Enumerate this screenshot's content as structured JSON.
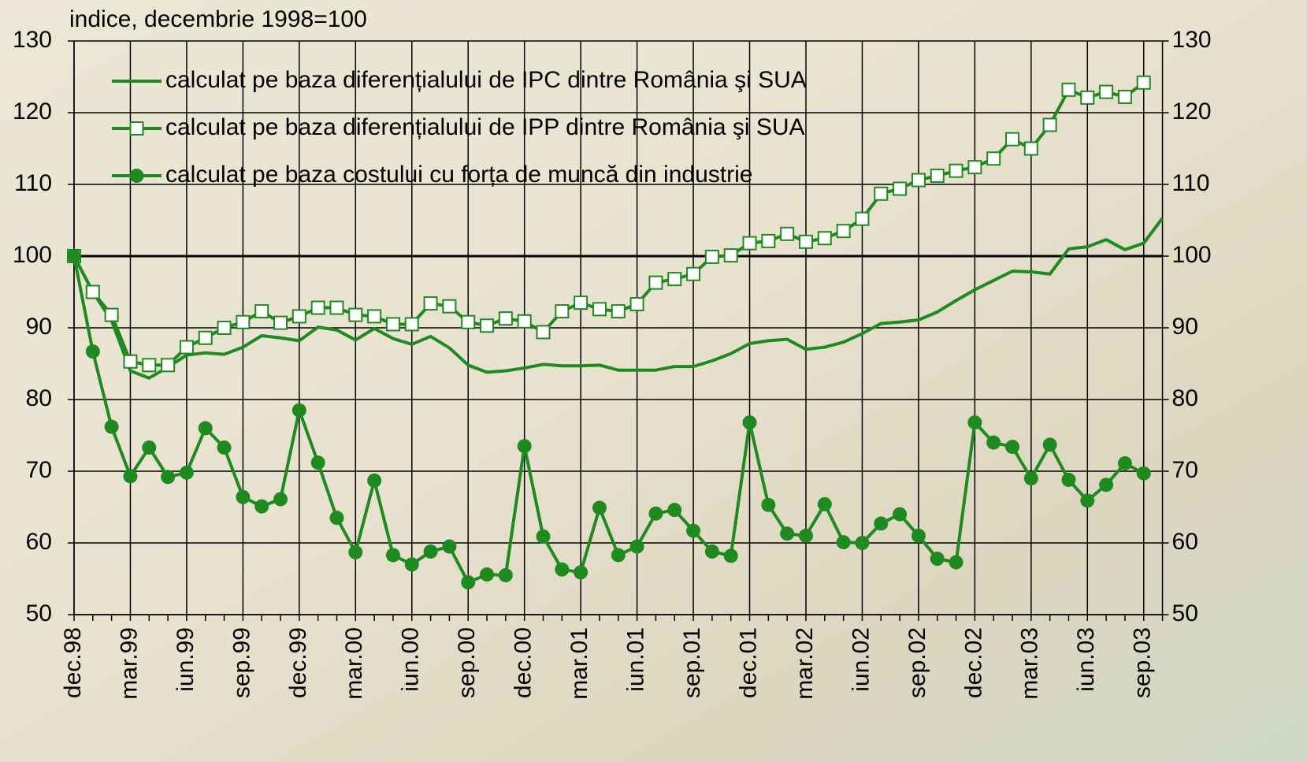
{
  "chart_data": {
    "type": "line",
    "y_axis_title": "indice, decembrie 1998=100",
    "categories": [
      "dec.98",
      null,
      null,
      "mar.99",
      null,
      null,
      "iun.99",
      null,
      null,
      "sep.99",
      null,
      null,
      "dec.99",
      null,
      null,
      "mar.00",
      null,
      null,
      "iun.00",
      null,
      null,
      "sep.00",
      null,
      null,
      "dec.00",
      null,
      null,
      "mar.01",
      null,
      null,
      "iun.01",
      null,
      null,
      "sep.01",
      null,
      null,
      "dec.01",
      null,
      null,
      "mar.02",
      null,
      null,
      "iun.02",
      null,
      null,
      "sep.02",
      null,
      null,
      "dec.02",
      null,
      null,
      "mar.03",
      null,
      null,
      "iun.03",
      null,
      null,
      "sep.03",
      null
    ],
    "ylim": [
      50,
      130
    ],
    "yticks": [
      50,
      60,
      70,
      80,
      90,
      100,
      110,
      120,
      130
    ],
    "y2lim": [
      50,
      130
    ],
    "y2ticks": [
      50,
      60,
      70,
      80,
      90,
      100,
      110,
      120,
      130
    ],
    "reference_line": 100,
    "grid": true,
    "legend": "upper left",
    "series": [
      {
        "name": "calculat pe baza diferențialului de IPC dintre România şi SUA",
        "color": "#1f8a1f",
        "marker": "none",
        "values": [
          100,
          95,
          91,
          84,
          83,
          84.5,
          86.2,
          86.5,
          86.3,
          87.3,
          88.9,
          88.6,
          88.2,
          90.1,
          89.7,
          88.3,
          89.9,
          88.5,
          87.7,
          88.8,
          87.2,
          84.8,
          83.8,
          84,
          84.4,
          84.9,
          84.7,
          84.7,
          84.8,
          84.1,
          84.1,
          84.1,
          84.6,
          84.6,
          85.4,
          86.4,
          87.8,
          88.2,
          88.4,
          87,
          87.3,
          88,
          89.2,
          90.6,
          90.8,
          91.1,
          92.2,
          93.8,
          95.3,
          96.6,
          97.9,
          97.8,
          97.5,
          101,
          101.3,
          102.3,
          100.9,
          101.8,
          105.3
        ]
      },
      {
        "name": "calculat pe baza diferențialului de IPP dintre România şi SUA",
        "color": "#1f8a1f",
        "marker": "square",
        "values": [
          100,
          95,
          91.8,
          85.3,
          84.8,
          84.8,
          87.3,
          88.6,
          90,
          90.8,
          92.3,
          90.7,
          91.6,
          92.8,
          92.8,
          91.8,
          91.6,
          90.5,
          90.5,
          93.4,
          93,
          90.8,
          90.3,
          91.3,
          90.9,
          89.4,
          92.3,
          93.5,
          92.6,
          92.3,
          93.3,
          96.3,
          96.8,
          97.5,
          99.9,
          100.1,
          101.8,
          102.1,
          103.1,
          102,
          102.5,
          103.5,
          105.2,
          108.7,
          109.4,
          110.6,
          111.2,
          111.9,
          112.4,
          113.6,
          116.3,
          115,
          118.3,
          123.2,
          122.1,
          122.9,
          122.2,
          124.2,
          null
        ]
      },
      {
        "name": "calculat pe baza costului cu forța de muncă din industrie",
        "color": "#1f8a1f",
        "marker": "circle",
        "values": [
          100,
          86.7,
          76.2,
          69.3,
          73.3,
          69.2,
          69.8,
          76,
          73.3,
          66.4,
          65.1,
          66.1,
          78.5,
          71.2,
          63.5,
          58.7,
          68.7,
          58.3,
          57,
          58.8,
          59.5,
          54.5,
          55.6,
          55.5,
          73.5,
          60.9,
          56.3,
          55.9,
          64.9,
          58.3,
          59.5,
          64.1,
          64.6,
          61.7,
          58.8,
          58.2,
          76.8,
          65.3,
          61.3,
          61,
          65.4,
          60.1,
          60,
          62.7,
          64,
          61,
          57.8,
          57.3,
          76.8,
          74,
          73.4,
          69,
          73.7,
          68.8,
          65.9,
          68.1,
          71.1,
          69.7,
          null
        ]
      }
    ]
  }
}
